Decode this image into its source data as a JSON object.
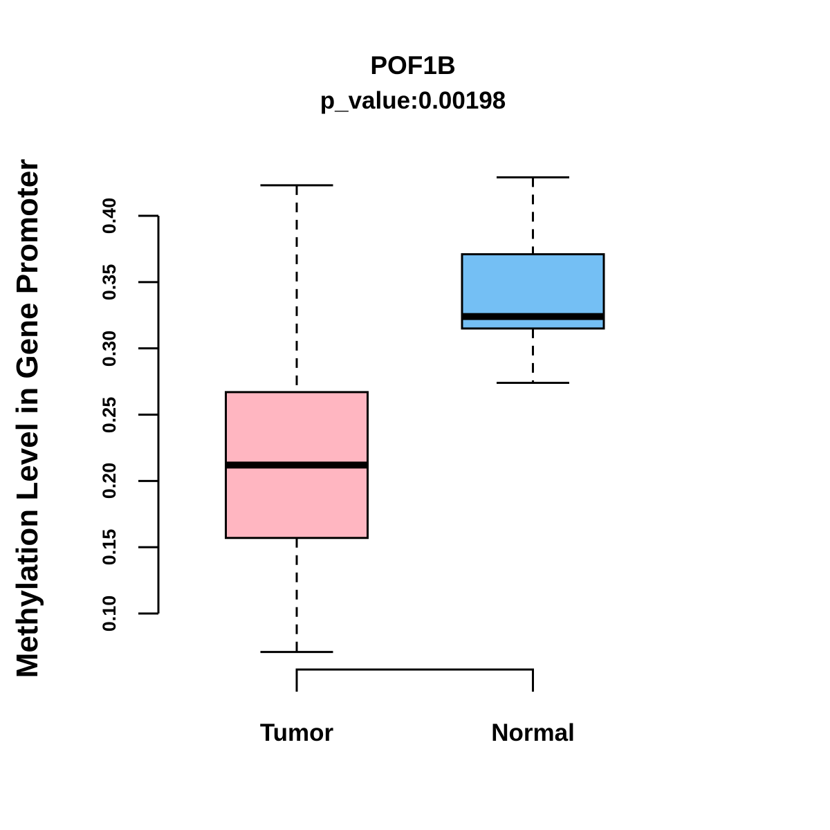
{
  "title": "POF1B",
  "subtitle": "p_value:0.00198",
  "ylabel": "Methylation Level in Gene Promoter",
  "colors": {
    "tumor_box": "#FFB6C1",
    "normal_box": "#74BFF4",
    "line": "#000000",
    "background": "#FFFFFF"
  },
  "chart_data": {
    "type": "boxplot",
    "title": "POF1B",
    "subtitle": "p_value:0.00198",
    "xlabel": "",
    "ylabel": "Methylation Level in Gene Promoter",
    "categories": [
      "Tumor",
      "Normal"
    ],
    "series": [
      {
        "name": "Tumor",
        "whisker_low": 0.071,
        "q1": 0.157,
        "median": 0.212,
        "q3": 0.267,
        "whisker_high": 0.423,
        "outliers": [],
        "color": "#FFB6C1"
      },
      {
        "name": "Normal",
        "whisker_low": 0.274,
        "q1": 0.315,
        "median": 0.324,
        "q3": 0.371,
        "whisker_high": 0.429,
        "outliers": [],
        "color": "#74BFF4"
      }
    ],
    "yticks": [
      0.1,
      0.15,
      0.2,
      0.25,
      0.3,
      0.35,
      0.4
    ],
    "ytick_labels": [
      "0.10",
      "0.15",
      "0.20",
      "0.25",
      "0.30",
      "0.35",
      "0.40"
    ],
    "ylim": [
      0.1,
      0.4
    ],
    "grid": false,
    "legend": false
  }
}
